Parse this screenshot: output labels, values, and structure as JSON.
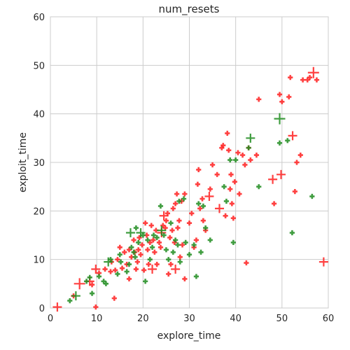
{
  "chart_data": {
    "type": "scatter",
    "title": "num_resets",
    "xlabel": "explore_time",
    "ylabel": "exploit_time",
    "xlim": [
      0,
      60
    ],
    "ylim": [
      0,
      60
    ],
    "x_ticks": [
      "0",
      "10",
      "20",
      "30",
      "40",
      "50",
      "60"
    ],
    "y_ticks": [
      "0",
      "10",
      "20",
      "30",
      "40",
      "50",
      "60"
    ],
    "grid": true,
    "legend": "none",
    "marker": "plus",
    "series": [
      {
        "color": "#ff2020",
        "points": [
          [
            1.5,
            0.2,
            2
          ],
          [
            9.8,
            0.2,
            1
          ],
          [
            5.0,
            2.5,
            1
          ],
          [
            6.3,
            5.0,
            3
          ],
          [
            8.5,
            5.5,
            2
          ],
          [
            9.0,
            4.8,
            1
          ],
          [
            9.8,
            8.0,
            2
          ],
          [
            10.5,
            7.2,
            1
          ],
          [
            11.8,
            8.0,
            1
          ],
          [
            13.0,
            7.5,
            1
          ],
          [
            13.2,
            9.5,
            1
          ],
          [
            14.0,
            7.8,
            1
          ],
          [
            14.5,
            10.0,
            1
          ],
          [
            13.8,
            2.0,
            1
          ],
          [
            15.0,
            12.5,
            1
          ],
          [
            15.5,
            8.2,
            1
          ],
          [
            16.0,
            11.5,
            1
          ],
          [
            16.5,
            9.0,
            1
          ],
          [
            17.0,
            12.0,
            1
          ],
          [
            17.0,
            6.0,
            1
          ],
          [
            17.5,
            10.5,
            1
          ],
          [
            18.0,
            14.0,
            1
          ],
          [
            18.2,
            11.5,
            1
          ],
          [
            18.5,
            8.0,
            1
          ],
          [
            18.8,
            9.5,
            1
          ],
          [
            19.0,
            12.0,
            1
          ],
          [
            19.2,
            14.5,
            1
          ],
          [
            19.5,
            11.0,
            1
          ],
          [
            19.8,
            13.0,
            1
          ],
          [
            20.2,
            7.8,
            1
          ],
          [
            20.5,
            17.5,
            1
          ],
          [
            20.8,
            15.0,
            1
          ],
          [
            21.0,
            12.0,
            1
          ],
          [
            21.2,
            9.0,
            1
          ],
          [
            21.5,
            13.5,
            1
          ],
          [
            21.8,
            17.0,
            1
          ],
          [
            22.0,
            8.0,
            2
          ],
          [
            22.2,
            14.0,
            1
          ],
          [
            22.5,
            11.5,
            1
          ],
          [
            22.8,
            16.0,
            1
          ],
          [
            23.0,
            9.0,
            1
          ],
          [
            23.5,
            13.5,
            1
          ],
          [
            23.8,
            12.5,
            1
          ],
          [
            24.0,
            15.5,
            2
          ],
          [
            24.3,
            17.0,
            1
          ],
          [
            24.5,
            19.0,
            2
          ],
          [
            24.8,
            16.5,
            1
          ],
          [
            25.0,
            18.0,
            1
          ],
          [
            25.3,
            19.5,
            1
          ],
          [
            25.5,
            7.0,
            1
          ],
          [
            25.8,
            14.5,
            1
          ],
          [
            26.0,
            9.0,
            1
          ],
          [
            26.3,
            16.0,
            1
          ],
          [
            26.5,
            20.5,
            1
          ],
          [
            26.8,
            13.5,
            1
          ],
          [
            27.0,
            8.0,
            2
          ],
          [
            27.0,
            21.5,
            1
          ],
          [
            27.3,
            23.5,
            1
          ],
          [
            27.5,
            16.5,
            1
          ],
          [
            27.8,
            18.0,
            1
          ],
          [
            28.0,
            10.5,
            1
          ],
          [
            28.3,
            22.0,
            1
          ],
          [
            28.5,
            13.0,
            1
          ],
          [
            29.0,
            6.0,
            1
          ],
          [
            29.0,
            23.5,
            1
          ],
          [
            30.0,
            17.5,
            1
          ],
          [
            30.5,
            19.5,
            1
          ],
          [
            31.0,
            12.5,
            1
          ],
          [
            31.5,
            14.0,
            1
          ],
          [
            31.8,
            25.5,
            1
          ],
          [
            32.0,
            28.5,
            1
          ],
          [
            32.3,
            20.5,
            1
          ],
          [
            32.8,
            22.5,
            1
          ],
          [
            33.0,
            18.0,
            1
          ],
          [
            33.5,
            16.0,
            1
          ],
          [
            34.3,
            23.0,
            2
          ],
          [
            34.5,
            24.5,
            1
          ],
          [
            35.0,
            29.5,
            1
          ],
          [
            36.0,
            27.5,
            1
          ],
          [
            36.5,
            20.5,
            2
          ],
          [
            37.0,
            33.0,
            1
          ],
          [
            37.3,
            33.5,
            1
          ],
          [
            37.8,
            19.0,
            1
          ],
          [
            38.2,
            36.0,
            1
          ],
          [
            38.5,
            32.5,
            1
          ],
          [
            38.8,
            24.5,
            1
          ],
          [
            39.0,
            27.5,
            1
          ],
          [
            39.2,
            21.5,
            1
          ],
          [
            39.5,
            18.5,
            1
          ],
          [
            39.8,
            26.0,
            1
          ],
          [
            40.5,
            32.0,
            1
          ],
          [
            40.8,
            23.5,
            1
          ],
          [
            41.5,
            31.5,
            1
          ],
          [
            42.0,
            29.5,
            1
          ],
          [
            42.3,
            9.3,
            1
          ],
          [
            42.8,
            33.0,
            1
          ],
          [
            43.2,
            30.5,
            1
          ],
          [
            44.5,
            31.5,
            1
          ],
          [
            45.0,
            43.0,
            1
          ],
          [
            48.0,
            26.5,
            2
          ],
          [
            48.3,
            21.5,
            1
          ],
          [
            49.8,
            27.5,
            2
          ],
          [
            49.5,
            44.0,
            1
          ],
          [
            50.0,
            42.5,
            1
          ],
          [
            51.5,
            43.5,
            1
          ],
          [
            51.8,
            47.5,
            1
          ],
          [
            52.3,
            35.5,
            2
          ],
          [
            52.8,
            24.0,
            1
          ],
          [
            53.2,
            30.0,
            1
          ],
          [
            54.0,
            31.5,
            1
          ],
          [
            54.5,
            47.0,
            1
          ],
          [
            55.5,
            47.0,
            1
          ],
          [
            56.0,
            47.5,
            1
          ],
          [
            56.8,
            48.5,
            3
          ],
          [
            57.5,
            47.0,
            1
          ],
          [
            59.0,
            9.5,
            2
          ]
        ]
      },
      {
        "color": "#1e8c1e",
        "points": [
          [
            4.2,
            1.5,
            1
          ],
          [
            5.5,
            2.5,
            2
          ],
          [
            7.8,
            5.5,
            1
          ],
          [
            8.5,
            6.3,
            1
          ],
          [
            9.0,
            3.0,
            1
          ],
          [
            10.5,
            6.5,
            1
          ],
          [
            11.5,
            5.5,
            1
          ],
          [
            12.0,
            5.0,
            1
          ],
          [
            12.5,
            9.5,
            2
          ],
          [
            13.0,
            10.0,
            1
          ],
          [
            14.5,
            7.0,
            1
          ],
          [
            15.0,
            11.0,
            1
          ],
          [
            15.2,
            9.5,
            1
          ],
          [
            16.5,
            7.5,
            1
          ],
          [
            17.0,
            9.0,
            1
          ],
          [
            17.3,
            15.5,
            2
          ],
          [
            17.5,
            12.5,
            1
          ],
          [
            18.0,
            11.5,
            1
          ],
          [
            18.3,
            10.5,
            1
          ],
          [
            18.5,
            16.5,
            1
          ],
          [
            19.0,
            13.5,
            1
          ],
          [
            19.5,
            15.5,
            2
          ],
          [
            20.0,
            15.0,
            1
          ],
          [
            20.5,
            5.5,
            1
          ],
          [
            21.0,
            14.0,
            1
          ],
          [
            21.5,
            10.0,
            1
          ],
          [
            22.0,
            12.5,
            1
          ],
          [
            22.3,
            15.0,
            1
          ],
          [
            23.0,
            14.5,
            1
          ],
          [
            23.8,
            21.0,
            1
          ],
          [
            24.0,
            16.0,
            2
          ],
          [
            24.5,
            15.0,
            1
          ],
          [
            25.0,
            12.0,
            1
          ],
          [
            25.5,
            10.0,
            1
          ],
          [
            26.0,
            17.5,
            1
          ],
          [
            26.5,
            11.5,
            1
          ],
          [
            27.0,
            14.0,
            1
          ],
          [
            27.5,
            13.0,
            1
          ],
          [
            27.8,
            22.0,
            1
          ],
          [
            28.0,
            9.5,
            1
          ],
          [
            28.8,
            22.5,
            1
          ],
          [
            29.2,
            13.5,
            1
          ],
          [
            30.0,
            11.0,
            1
          ],
          [
            31.0,
            13.0,
            1
          ],
          [
            31.5,
            6.5,
            1
          ],
          [
            32.0,
            21.5,
            1
          ],
          [
            32.5,
            11.5,
            1
          ],
          [
            33.0,
            21.0,
            1
          ],
          [
            33.5,
            16.5,
            1
          ],
          [
            34.5,
            14.0,
            1
          ],
          [
            37.5,
            25.0,
            1
          ],
          [
            38.0,
            22.0,
            1
          ],
          [
            38.8,
            30.5,
            1
          ],
          [
            39.5,
            13.5,
            1
          ],
          [
            40.0,
            30.5,
            1
          ],
          [
            42.8,
            33.0,
            1
          ],
          [
            43.2,
            35.0,
            2
          ],
          [
            45.0,
            25.0,
            1
          ],
          [
            49.5,
            39.0,
            3
          ],
          [
            49.5,
            34.0,
            1
          ],
          [
            51.2,
            34.5,
            1
          ],
          [
            52.2,
            15.5,
            1
          ],
          [
            56.5,
            23.0,
            1
          ]
        ]
      }
    ]
  }
}
